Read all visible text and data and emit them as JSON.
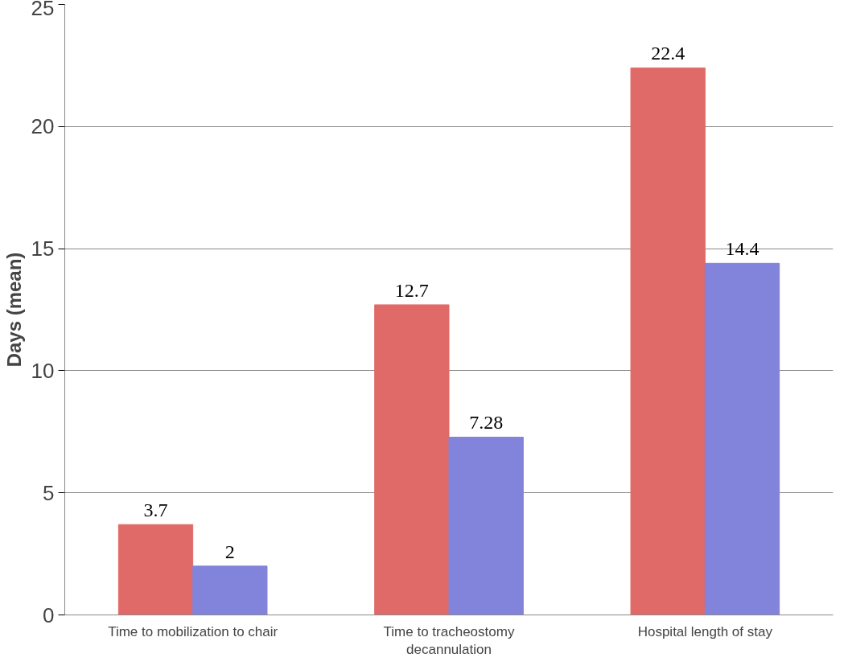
{
  "chart_data": {
    "type": "bar",
    "ylabel": "Days (mean)",
    "categories": [
      "Time to mobilization to chair",
      "Time to tracheostomy decannulation",
      "Hospital length of stay"
    ],
    "series": [
      {
        "color": "#e06a68",
        "values": [
          3.7,
          12.7,
          22.4
        ]
      },
      {
        "color": "#8283da",
        "values": [
          2,
          7.28,
          14.4
        ]
      }
    ],
    "ylim": [
      0,
      25
    ],
    "yticks": [
      0,
      5,
      10,
      15,
      20,
      25
    ],
    "grid": "y",
    "data_labels": true
  }
}
